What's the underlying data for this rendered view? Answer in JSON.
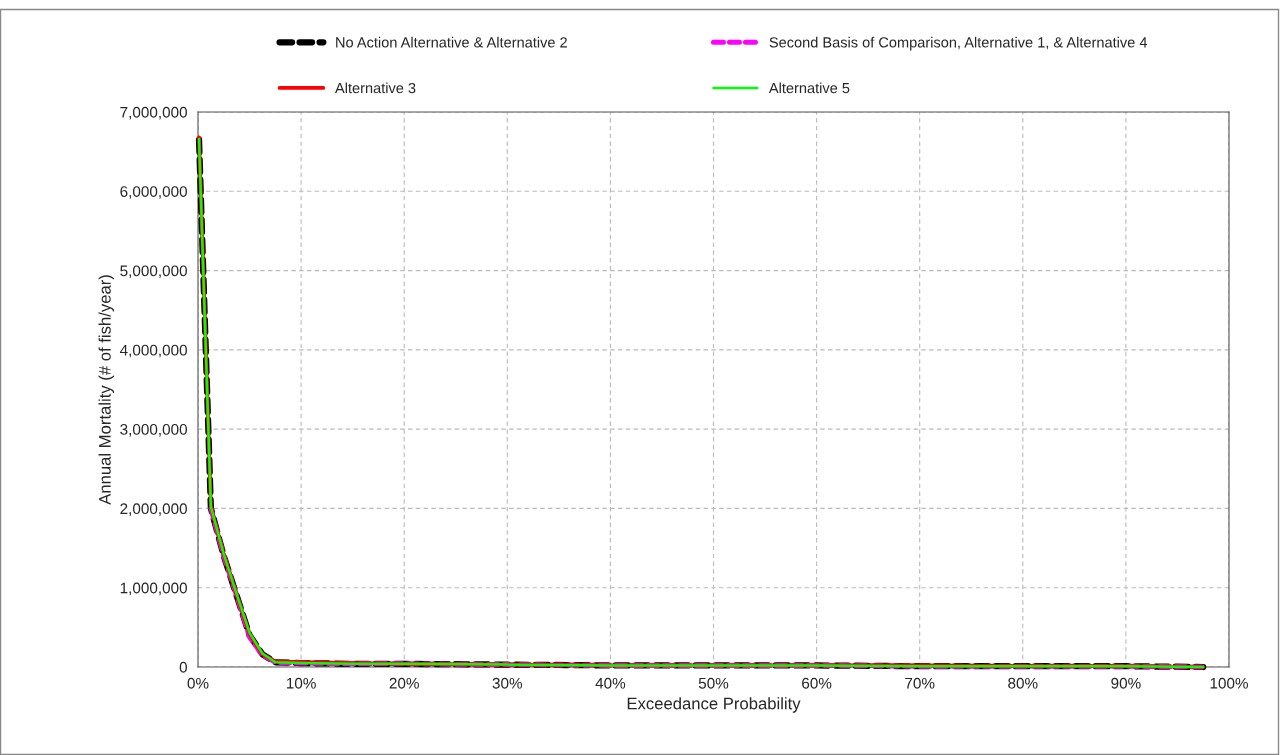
{
  "chart_data": {
    "type": "line",
    "xlabel": "Exceedance Probability",
    "ylabel": "Annual Mortality (# of fish/year)",
    "xlim": [
      0,
      100
    ],
    "ylim": [
      0,
      7000000
    ],
    "xticks": [
      {
        "value": 0,
        "label": "0%"
      },
      {
        "value": 10,
        "label": "10%"
      },
      {
        "value": 20,
        "label": "20%"
      },
      {
        "value": 30,
        "label": "30%"
      },
      {
        "value": 40,
        "label": "40%"
      },
      {
        "value": 50,
        "label": "50%"
      },
      {
        "value": 60,
        "label": "60%"
      },
      {
        "value": 70,
        "label": "70%"
      },
      {
        "value": 80,
        "label": "80%"
      },
      {
        "value": 90,
        "label": "90%"
      },
      {
        "value": 100,
        "label": "100%"
      }
    ],
    "yticks": [
      {
        "value": 0,
        "label": "0"
      },
      {
        "value": 1000000,
        "label": "1,000,000"
      },
      {
        "value": 2000000,
        "label": "2,000,000"
      },
      {
        "value": 3000000,
        "label": "3,000,000"
      },
      {
        "value": 4000000,
        "label": "4,000,000"
      },
      {
        "value": 5000000,
        "label": "5,000,000"
      },
      {
        "value": 6000000,
        "label": "6,000,000"
      },
      {
        "value": 7000000,
        "label": "7,000,000"
      }
    ],
    "grid": true,
    "legend": "top",
    "x": [
      0.1,
      1.25,
      2.5,
      3.75,
      5,
      6.25,
      7.5,
      10,
      15,
      20,
      30,
      40,
      50,
      60,
      70,
      80,
      90,
      97.5
    ],
    "series": [
      {
        "name": "No Action Alternative & Alternative 2",
        "color": "#000000",
        "line_style": "dashed",
        "values": [
          6650000,
          2000000,
          1400000,
          900000,
          400000,
          160000,
          60000,
          50000,
          40000,
          40000,
          30000,
          20000,
          20000,
          20000,
          10000,
          10000,
          10000,
          0
        ]
      },
      {
        "name": "Second Basis of Comparison, Alternative 1, & Alternative 4",
        "color": "#ff00ff",
        "line_style": "dashed",
        "values": [
          null,
          2000000,
          1400000,
          900000,
          380000,
          150000,
          60000,
          50000,
          40000,
          40000,
          30000,
          20000,
          20000,
          20000,
          10000,
          10000,
          10000,
          0
        ]
      },
      {
        "name": "Alternative 3",
        "color": "#ff0000",
        "line_style": "solid",
        "values": [
          6680000,
          2020000,
          1420000,
          910000,
          420000,
          160000,
          70000,
          60000,
          50000,
          40000,
          30000,
          20000,
          20000,
          20000,
          20000,
          10000,
          10000,
          0
        ]
      },
      {
        "name": "Alternative 5",
        "color": "#00ff00",
        "line_style": "solid",
        "values": [
          6660000,
          2020000,
          1420000,
          920000,
          430000,
          170000,
          60000,
          50000,
          40000,
          40000,
          30000,
          20000,
          20000,
          20000,
          10000,
          10000,
          10000,
          0
        ]
      }
    ]
  }
}
